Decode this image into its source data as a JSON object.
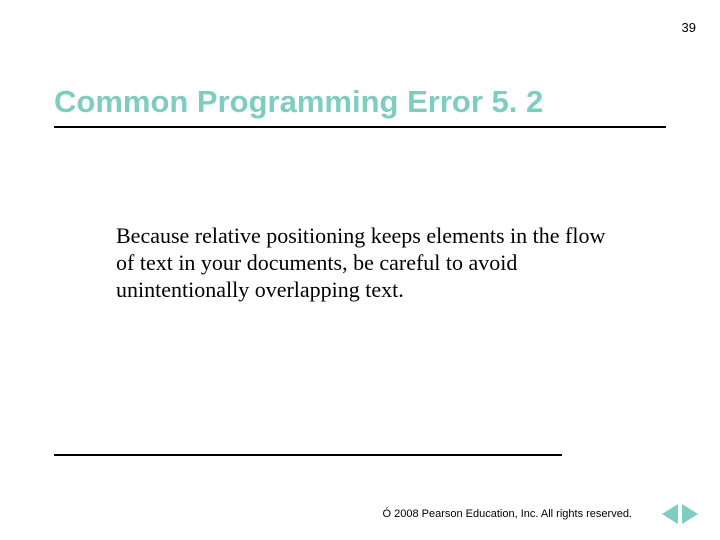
{
  "page": {
    "number": "39",
    "background_color": "#ffffff"
  },
  "title": {
    "text": "Common Programming Error 5. 2",
    "color": "#7fccc1",
    "fontsize": 31,
    "fontweight": "bold"
  },
  "body": {
    "text": "Because relative positioning keeps elements in the flow of text in your documents, be careful to avoid unintentionally overlapping text.",
    "fontsize": 22,
    "color": "#000000",
    "font_family": "serif"
  },
  "rules": {
    "title_rule_width": 612,
    "bottom_rule_width": 508,
    "color": "#000000",
    "thickness": 2
  },
  "footer": {
    "copyright": "Ó 2008 Pearson Education, Inc. All rights reserved.",
    "fontsize": 11
  },
  "nav": {
    "arrow_color": "#7fccc1"
  }
}
